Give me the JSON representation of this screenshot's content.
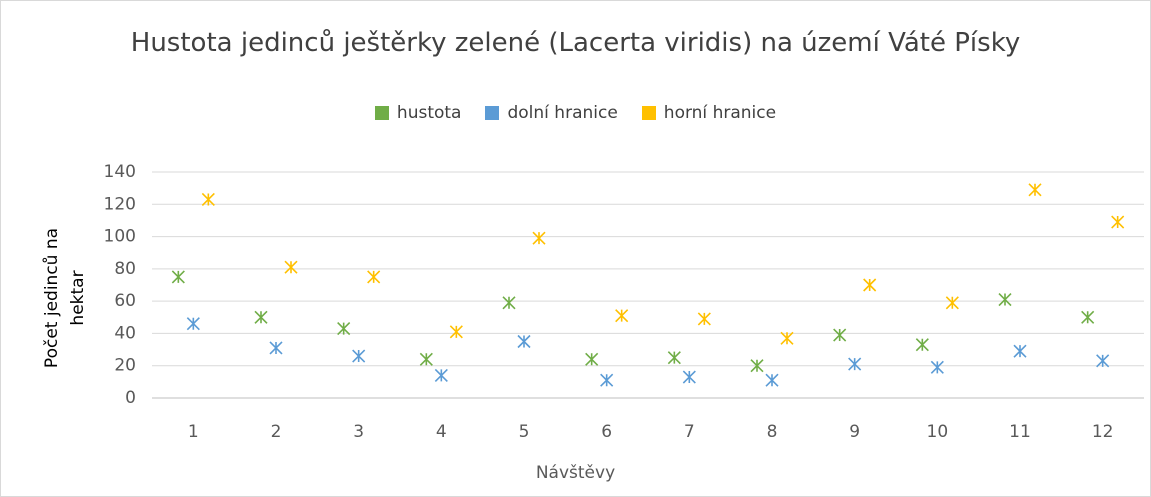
{
  "chart_data": {
    "type": "scatter",
    "title": "Hustota jedinců ještěrky zelené (Lacerta viridis) na území Váté Písky",
    "x_label": "Návštěvy",
    "y_label": "Počet jedinců na hektar",
    "categories": [
      "1",
      "2",
      "3",
      "4",
      "5",
      "6",
      "7",
      "8",
      "9",
      "10",
      "11",
      "12"
    ],
    "series": [
      {
        "name": "hustota",
        "color": "#70ad47",
        "values": [
          75,
          50,
          43,
          24,
          59,
          24,
          25,
          20,
          39,
          33,
          61,
          50
        ]
      },
      {
        "name": "dolní hranice",
        "color": "#5b9bd5",
        "values": [
          46,
          31,
          26,
          14,
          35,
          11,
          13,
          11,
          21,
          19,
          29,
          23
        ]
      },
      {
        "name": "horní hranice",
        "color": "#ffc000",
        "values": [
          123,
          81,
          75,
          41,
          99,
          51,
          49,
          37,
          70,
          59,
          129,
          109
        ]
      }
    ],
    "ylim": [
      0,
      140
    ],
    "yticks": [
      0,
      20,
      40,
      60,
      80,
      100,
      120,
      140
    ],
    "grid": true,
    "legend": "top"
  }
}
